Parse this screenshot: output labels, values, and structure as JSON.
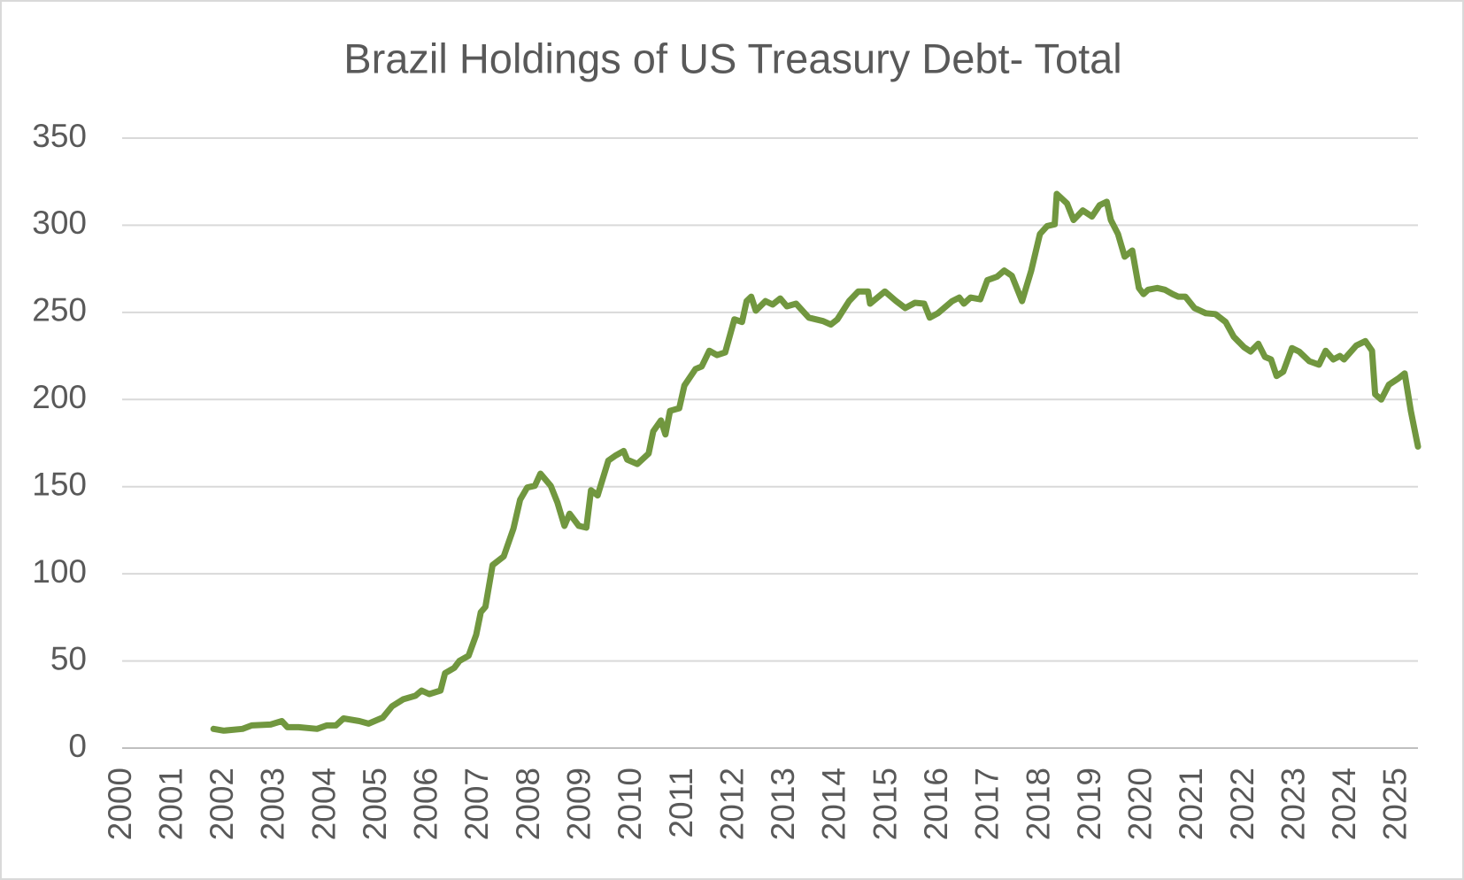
{
  "chart_data": {
    "type": "line",
    "title": "Brazil Holdings of US Treasury Debt- Total",
    "x": [
      2001.79,
      2001.99,
      2002.36,
      2002.54,
      2002.91,
      2003.13,
      2003.24,
      2003.46,
      2003.82,
      2004.01,
      2004.19,
      2004.34,
      2004.65,
      2004.83,
      2005.11,
      2005.29,
      2005.51,
      2005.75,
      2005.87,
      2006.02,
      2006.24,
      2006.33,
      2006.51,
      2006.61,
      2006.79,
      2006.94,
      2007.03,
      2007.12,
      2007.26,
      2007.48,
      2007.67,
      2007.8,
      2007.94,
      2008.09,
      2008.2,
      2008.4,
      2008.53,
      2008.67,
      2008.77,
      2008.95,
      2009.1,
      2009.19,
      2009.32,
      2009.53,
      2009.68,
      2009.83,
      2009.9,
      2010.1,
      2010.32,
      2010.41,
      2010.56,
      2010.65,
      2010.74,
      2010.92,
      2011.02,
      2011.24,
      2011.36,
      2011.51,
      2011.66,
      2011.82,
      2012.0,
      2012.15,
      2012.24,
      2012.33,
      2012.42,
      2012.61,
      2012.75,
      2012.9,
      2013.03,
      2013.21,
      2013.46,
      2013.74,
      2013.89,
      2014.02,
      2014.25,
      2014.43,
      2014.62,
      2014.66,
      2014.95,
      2015.17,
      2015.35,
      2015.54,
      2015.72,
      2015.83,
      2015.99,
      2016.27,
      2016.41,
      2016.5,
      2016.63,
      2016.82,
      2016.96,
      2017.15,
      2017.29,
      2017.44,
      2017.64,
      2017.82,
      2017.99,
      2018.13,
      2018.28,
      2018.32,
      2018.52,
      2018.65,
      2018.83,
      2019.01,
      2019.16,
      2019.3,
      2019.38,
      2019.52,
      2019.65,
      2019.8,
      2019.93,
      2020.02,
      2020.11,
      2020.29,
      2020.44,
      2020.59,
      2020.7,
      2020.84,
      2021.02,
      2021.24,
      2021.43,
      2021.63,
      2021.79,
      2021.99,
      2022.12,
      2022.27,
      2022.4,
      2022.52,
      2022.63,
      2022.76,
      2022.93,
      2023.07,
      2023.27,
      2023.46,
      2023.59,
      2023.74,
      2023.87,
      2023.95,
      2024.19,
      2024.37,
      2024.5,
      2024.56,
      2024.68,
      2024.83,
      2025.01,
      2025.14,
      2025.26,
      2025.4
    ],
    "series": [
      {
        "color": "#71973f",
        "values": [
          11,
          10,
          11,
          13,
          13.5,
          15.5,
          12,
          12,
          11,
          13,
          13,
          17,
          15.5,
          14,
          17.5,
          24,
          28,
          30,
          33,
          31,
          33,
          43,
          46,
          50,
          53,
          65,
          78,
          81,
          105,
          110,
          126,
          142.5,
          149.5,
          150.5,
          157.5,
          150.5,
          141,
          127.5,
          134.5,
          127.5,
          126.5,
          148,
          145,
          165,
          168,
          170.5,
          165.5,
          163,
          169,
          181.7,
          188,
          180,
          193.5,
          195,
          208,
          217.5,
          219,
          228,
          225.5,
          227,
          246,
          244.5,
          256.5,
          259,
          251,
          256.5,
          254.5,
          258,
          253.5,
          255,
          247,
          245,
          243,
          246,
          256.5,
          262,
          262,
          255,
          262,
          256.5,
          252.5,
          255.5,
          255,
          247,
          249.5,
          256.5,
          258.5,
          255,
          258.5,
          257.5,
          268.5,
          270.5,
          274,
          271,
          256.5,
          274,
          295,
          299.5,
          300.5,
          318,
          312.5,
          303,
          308.5,
          305,
          311.5,
          313.5,
          303,
          295,
          282,
          285.5,
          264,
          260.5,
          263,
          264,
          263,
          260.5,
          259,
          259,
          252.5,
          249.5,
          249,
          244.5,
          236,
          230,
          227.5,
          232,
          224.5,
          223,
          213.5,
          216,
          229.5,
          227.5,
          222,
          220,
          228,
          223,
          225,
          223,
          231,
          233.5,
          228,
          203,
          200,
          208.5,
          212,
          215,
          193.5,
          173
        ]
      }
    ],
    "xlim": [
      2000,
      2025.4
    ],
    "xticks": [
      2000,
      2001,
      2002,
      2003,
      2004,
      2005,
      2006,
      2007,
      2008,
      2009,
      2010,
      2011,
      2012,
      2013,
      2014,
      2015,
      2016,
      2017,
      2018,
      2019,
      2020,
      2021,
      2022,
      2023,
      2024,
      2025
    ],
    "ylim": [
      0,
      350
    ],
    "yticks": [
      0,
      50,
      100,
      150,
      200,
      250,
      300,
      350
    ],
    "grid": true
  }
}
